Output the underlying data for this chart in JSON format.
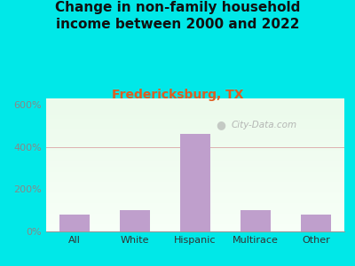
{
  "title": "Change in non-family household\nincome between 2000 and 2022",
  "subtitle": "Fredericksburg, TX",
  "categories": [
    "All",
    "White",
    "Hispanic",
    "Multirace",
    "Other"
  ],
  "values": [
    80,
    100,
    460,
    100,
    80
  ],
  "bar_color": "#bf9fcc",
  "title_fontsize": 11,
  "subtitle_fontsize": 10,
  "subtitle_color": "#e05c20",
  "title_color": "#111111",
  "outer_bg": "#00e8e8",
  "yticks": [
    0,
    200,
    400,
    600
  ],
  "ylim": [
    0,
    630
  ],
  "watermark": "City-Data.com",
  "watermark_color": "#aaaaaa",
  "grid_color": "#ddb0b0",
  "ytick_color": "#888888",
  "xtick_color": "#333333"
}
